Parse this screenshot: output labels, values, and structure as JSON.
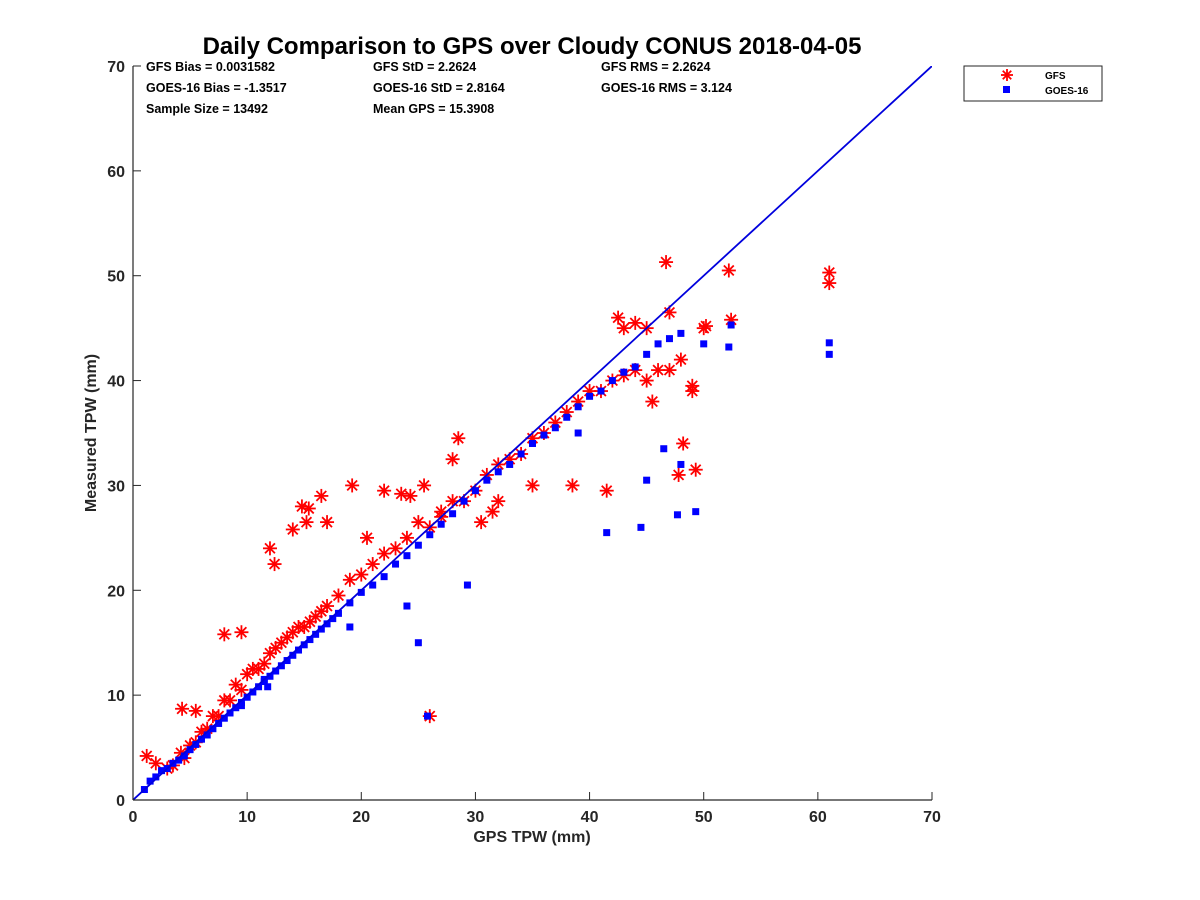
{
  "chart_data": {
    "type": "scatter",
    "title": "Daily Comparison to GPS over Cloudy CONUS 2018-04-05",
    "xlabel": "GPS TPW (mm)",
    "ylabel": "Measured TPW (mm)",
    "xlim": [
      0,
      70
    ],
    "ylim": [
      0,
      70
    ],
    "xticks": [
      "0",
      "10",
      "20",
      "30",
      "40",
      "50",
      "60",
      "70"
    ],
    "yticks": [
      "0",
      "10",
      "20",
      "30",
      "40",
      "50",
      "60",
      "70"
    ],
    "grid": false,
    "legend_position": "outside-top-right",
    "stats": [
      [
        "GFS Bias = 0.0031582",
        "GFS StD = 2.2624",
        "GFS RMS = 2.2624"
      ],
      [
        "GOES-16 Bias = -1.3517",
        "GOES-16 StD = 2.8164",
        "GOES-16 RMS = 3.124"
      ],
      [
        "Sample Size = 13492",
        "Mean GPS = 15.3908",
        ""
      ]
    ],
    "one_to_one_line": {
      "x": [
        0,
        70
      ],
      "y": [
        0,
        70
      ],
      "color": "#0000dd"
    },
    "series": [
      {
        "name": "GFS",
        "marker": "asterisk",
        "color": "#ff0000",
        "x": [
          1.2,
          2.0,
          3.0,
          3.5,
          4.2,
          4.5,
          5.0,
          5.5,
          6.0,
          6.5,
          7.0,
          7.5,
          8.0,
          8.5,
          9.0,
          9.5,
          10.0,
          10.5,
          11.0,
          11.5,
          12.0,
          12.5,
          13.0,
          13.5,
          14.0,
          14.5,
          15.0,
          15.5,
          16.0,
          16.5,
          17.0,
          18.0,
          19.0,
          20.0,
          21.0,
          22.0,
          23.0,
          24.0,
          25.0,
          26.0,
          27.0,
          28.0,
          29.0,
          30.0,
          31.0,
          32.0,
          33.0,
          34.0,
          35.0,
          36.0,
          37.0,
          38.0,
          39.0,
          40.0,
          41.0,
          42.0,
          43.0,
          44.0,
          45.0,
          46.0,
          47.0,
          48.0,
          49.0,
          50.0,
          4.3,
          5.5,
          8.0,
          9.5,
          12.0,
          12.4,
          14.0,
          14.8,
          15.2,
          15.4,
          16.5,
          17.0,
          19.2,
          20.5,
          22.0,
          23.5,
          24.3,
          25.5,
          26.0,
          27.0,
          28.0,
          28.5,
          30.5,
          31.5,
          32.0,
          35.0,
          38.5,
          41.5,
          42.5,
          43.0,
          44.0,
          45.0,
          45.5,
          46.7,
          47.0,
          47.8,
          48.2,
          49.0,
          49.3,
          50.2,
          52.2,
          52.4,
          61.0,
          61.0
        ],
        "y": [
          4.2,
          3.5,
          3.0,
          3.3,
          4.5,
          4.0,
          5.2,
          5.5,
          6.5,
          6.8,
          8.0,
          8.0,
          9.5,
          9.5,
          11.0,
          10.5,
          12.0,
          12.5,
          12.5,
          13.0,
          14.0,
          14.5,
          15.0,
          15.5,
          16.0,
          16.5,
          16.5,
          17.0,
          17.5,
          18.0,
          18.5,
          19.5,
          21.0,
          21.5,
          22.5,
          23.5,
          24.0,
          25.0,
          26.5,
          26.0,
          27.5,
          28.5,
          28.5,
          29.5,
          31.0,
          32.0,
          32.5,
          33.0,
          34.5,
          35.0,
          36.0,
          37.0,
          38.0,
          39.0,
          39.0,
          40.0,
          40.5,
          41.0,
          40.0,
          41.0,
          41.0,
          42.0,
          39.5,
          45.0,
          8.7,
          8.5,
          15.8,
          16.0,
          24.0,
          22.5,
          25.8,
          28.0,
          26.5,
          27.8,
          29.0,
          26.5,
          30.0,
          25.0,
          29.5,
          29.2,
          29.0,
          30.0,
          8.0,
          27.0,
          32.5,
          34.5,
          26.5,
          27.5,
          28.5,
          30.0,
          30.0,
          29.5,
          46.0,
          45.0,
          45.5,
          45.0,
          38.0,
          51.3,
          46.5,
          31.0,
          34.0,
          39.0,
          31.5,
          45.2,
          50.5,
          45.8,
          50.3,
          49.3
        ]
      },
      {
        "name": "GOES-16",
        "marker": "square",
        "color": "#0000ff",
        "x": [
          1.0,
          1.5,
          2.0,
          2.5,
          3.0,
          3.5,
          4.0,
          4.5,
          5.0,
          5.5,
          6.0,
          6.5,
          7.0,
          7.5,
          8.0,
          8.5,
          9.0,
          9.5,
          10.0,
          10.5,
          11.0,
          11.5,
          12.0,
          12.5,
          13.0,
          13.5,
          14.0,
          14.5,
          15.0,
          15.5,
          16.0,
          16.5,
          17.0,
          17.5,
          18.0,
          19.0,
          20.0,
          21.0,
          22.0,
          23.0,
          24.0,
          25.0,
          26.0,
          27.0,
          28.0,
          29.0,
          30.0,
          31.0,
          32.0,
          33.0,
          34.0,
          35.0,
          36.0,
          37.0,
          38.0,
          39.0,
          40.0,
          41.0,
          42.0,
          43.0,
          44.0,
          45.0,
          46.0,
          47.0,
          48.0,
          9.5,
          11.5,
          11.8,
          19.0,
          24.0,
          25.0,
          25.8,
          29.3,
          41.5,
          44.5,
          47.7,
          49.3,
          50.0,
          52.2,
          52.4,
          61.0,
          61.0,
          45.0,
          46.5,
          48.0,
          39.0
        ],
        "y": [
          1.0,
          1.8,
          2.2,
          2.8,
          3.0,
          3.5,
          3.8,
          4.2,
          4.8,
          5.3,
          5.8,
          6.2,
          6.8,
          7.3,
          7.8,
          8.3,
          8.8,
          9.3,
          9.8,
          10.3,
          10.8,
          11.3,
          11.8,
          12.3,
          12.8,
          13.3,
          13.8,
          14.3,
          14.8,
          15.3,
          15.8,
          16.3,
          16.8,
          17.3,
          17.8,
          18.8,
          19.8,
          20.5,
          21.3,
          22.5,
          23.3,
          24.3,
          25.3,
          26.3,
          27.3,
          28.5,
          29.5,
          30.5,
          31.3,
          32.0,
          33.0,
          34.0,
          34.8,
          35.5,
          36.5,
          37.5,
          38.5,
          39.0,
          40.0,
          40.8,
          41.3,
          42.5,
          43.5,
          44.0,
          44.5,
          9.0,
          11.5,
          10.8,
          16.5,
          18.5,
          15.0,
          8.0,
          20.5,
          25.5,
          26.0,
          27.2,
          27.5,
          43.5,
          43.2,
          45.3,
          43.6,
          42.5,
          30.5,
          33.5,
          32.0,
          35.0
        ]
      }
    ]
  }
}
